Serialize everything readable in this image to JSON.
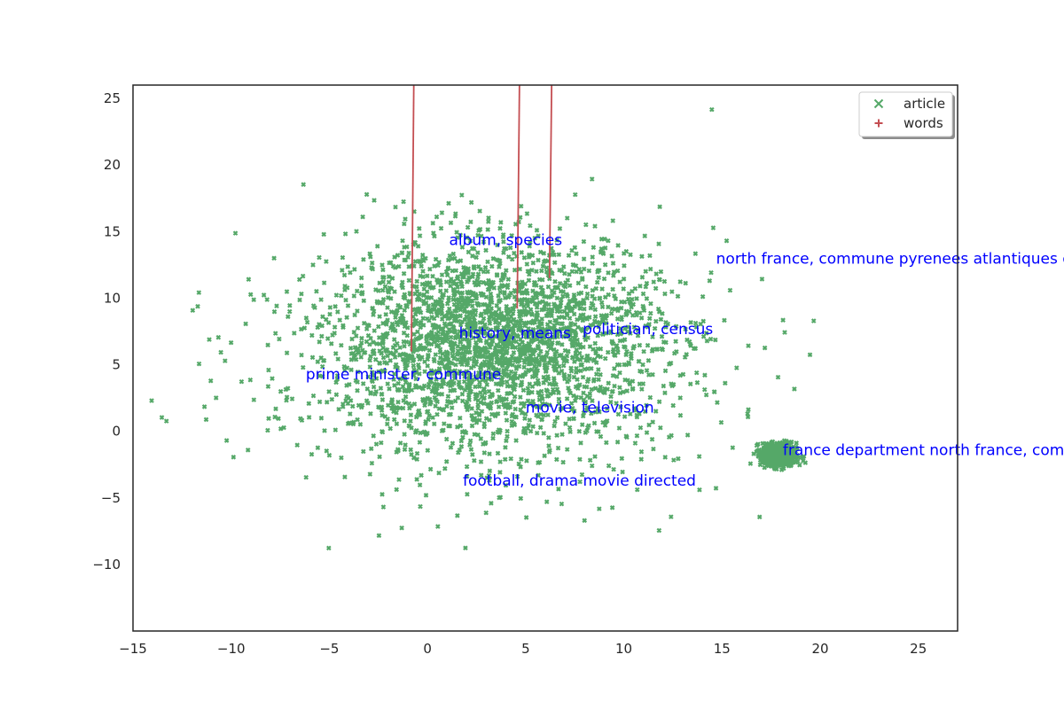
{
  "chart_data": {
    "type": "scatter",
    "title": "",
    "xlabel": "",
    "ylabel": "",
    "xlim": [
      -15,
      27
    ],
    "ylim": [
      -15,
      26
    ],
    "xticks": [
      -15,
      -10,
      -5,
      0,
      5,
      10,
      15,
      20,
      25
    ],
    "yticks": [
      -10,
      -5,
      0,
      5,
      10,
      15,
      20,
      25
    ],
    "grid": false,
    "legend_position": "top-right",
    "series": [
      {
        "name": "article",
        "marker": "x",
        "color": "#55a868",
        "clusters": [
          {
            "cx": 3.5,
            "cy": 7.0,
            "sx": 7.5,
            "sy": 6.5,
            "n": 2200
          },
          {
            "cx": 3.0,
            "cy": 4.0,
            "sx": 11.0,
            "sy": 8.5,
            "n": 700
          },
          {
            "cx": 18.0,
            "cy": -1.9,
            "sx": 0.8,
            "sy": 0.8,
            "n": 600
          }
        ]
      },
      {
        "name": "words",
        "marker": "+",
        "color": "#c44e52",
        "clusters": [
          {
            "cx": 3.5,
            "cy": 7.0,
            "sx": 4.2,
            "sy": 4.8,
            "n": 6500
          },
          {
            "cx": 7.5,
            "cy": 8.0,
            "sx": 4.0,
            "sy": 2.5,
            "n": 1500
          },
          {
            "cx": 3.0,
            "cy": 3.0,
            "sx": 10.0,
            "sy": 8.0,
            "n": 600
          }
        ]
      }
    ],
    "annotations": [
      {
        "text": "album, species",
        "x": 1.1,
        "y": 14.0
      },
      {
        "text": "north france, commune pyrenees atlantiques d",
        "x": 14.7,
        "y": 12.6
      },
      {
        "text": "history, means",
        "x": 1.6,
        "y": 7.0
      },
      {
        "text": "politician, census",
        "x": 7.9,
        "y": 7.3
      },
      {
        "text": "prime minister, commune",
        "x": -6.2,
        "y": 3.9
      },
      {
        "text": "movie, television",
        "x": 5.0,
        "y": 1.4
      },
      {
        "text": "france department north france, comm",
        "x": 18.1,
        "y": -1.8
      },
      {
        "text": "football, drama movie directed",
        "x": 1.8,
        "y": -4.1
      }
    ]
  }
}
